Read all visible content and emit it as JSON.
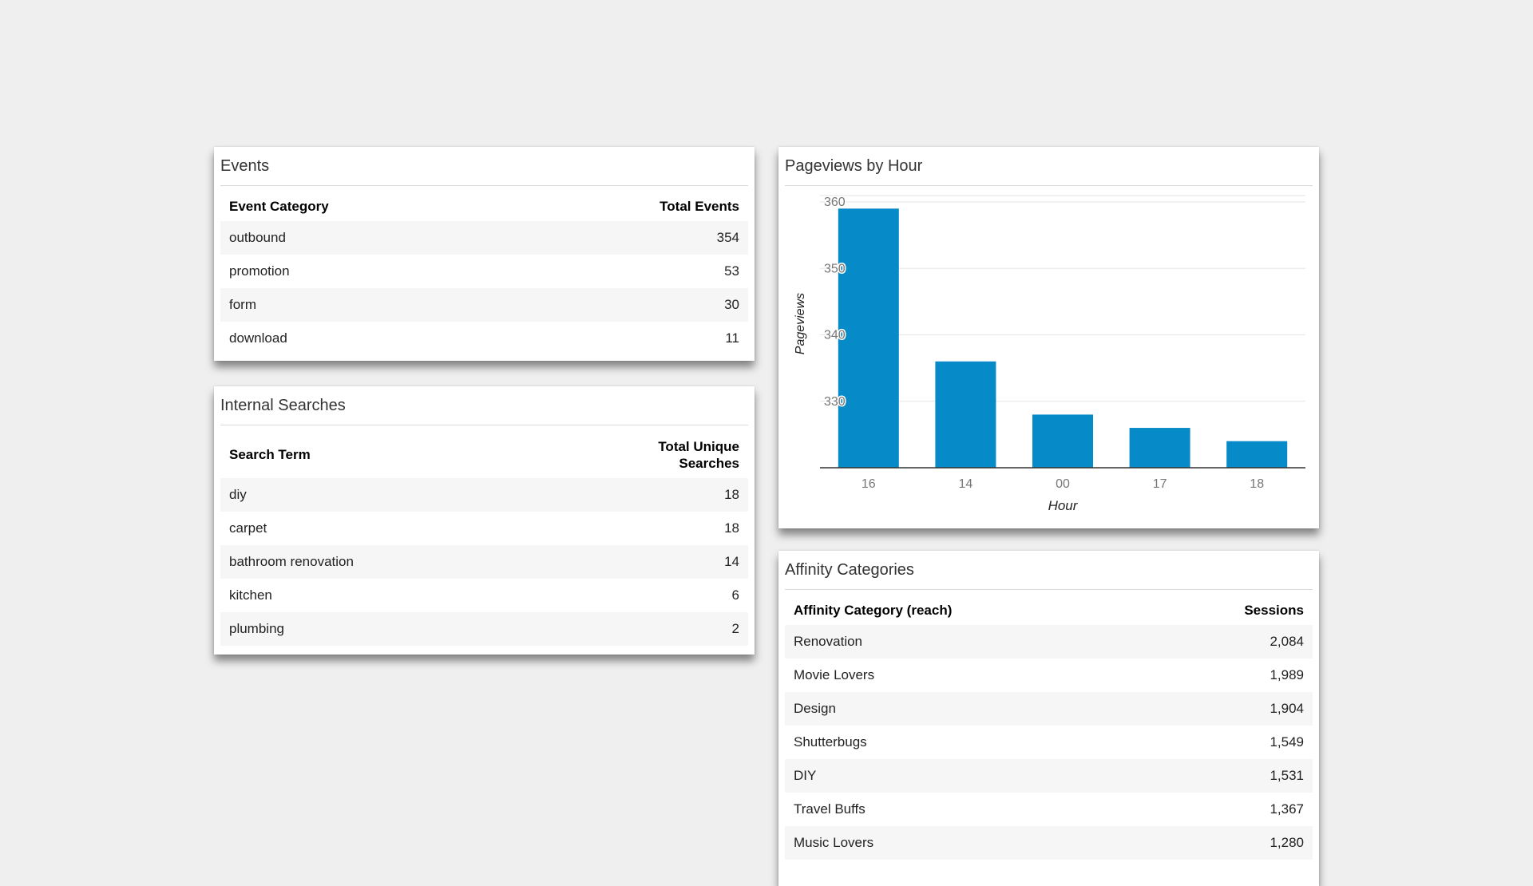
{
  "events": {
    "title": "Events",
    "columns": [
      "Event Category",
      "Total Events"
    ],
    "rows": [
      {
        "label": "outbound",
        "value": "354"
      },
      {
        "label": "promotion",
        "value": "53"
      },
      {
        "label": "form",
        "value": "30"
      },
      {
        "label": "download",
        "value": "11"
      }
    ]
  },
  "internal_searches": {
    "title": "Internal Searches",
    "columns": [
      "Search Term",
      "Total Unique\nSearches"
    ],
    "rows": [
      {
        "label": "diy",
        "value": "18"
      },
      {
        "label": "carpet",
        "value": "18"
      },
      {
        "label": "bathroom renovation",
        "value": "14"
      },
      {
        "label": "kitchen",
        "value": "6"
      },
      {
        "label": "plumbing",
        "value": "2"
      }
    ]
  },
  "pageviews": {
    "title": "Pageviews by Hour",
    "bar_color": "#078ac8"
  },
  "affinity": {
    "title": "Affinity Categories",
    "columns": [
      "Affinity Category (reach)",
      "Sessions"
    ],
    "rows": [
      {
        "label": "Renovation",
        "value": "2,084"
      },
      {
        "label": "Movie Lovers",
        "value": "1,989"
      },
      {
        "label": "Design",
        "value": "1,904"
      },
      {
        "label": "Shutterbugs",
        "value": "1,549"
      },
      {
        "label": "DIY",
        "value": "1,531"
      },
      {
        "label": "Travel Buffs",
        "value": "1,367"
      },
      {
        "label": "Music Lovers",
        "value": "1,280"
      }
    ]
  },
  "chart_data": {
    "type": "bar",
    "title": "Pageviews by Hour",
    "xlabel": "Hour",
    "ylabel": "Pageviews",
    "categories": [
      "16",
      "14",
      "00",
      "17",
      "18"
    ],
    "values": [
      359,
      336,
      328,
      326,
      324
    ],
    "ylim": [
      320,
      360
    ],
    "yticks": [
      330,
      340,
      350,
      360
    ],
    "grid": true
  }
}
